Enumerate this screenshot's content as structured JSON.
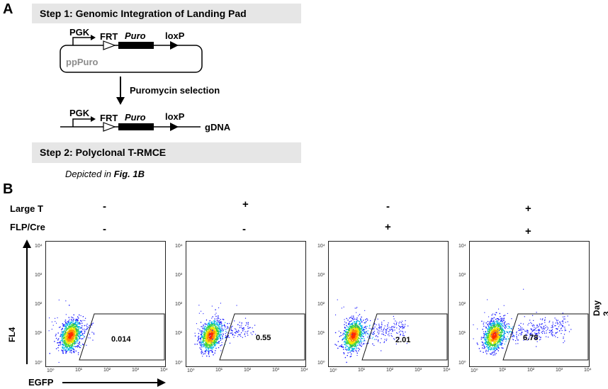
{
  "panelA": {
    "letter": "A",
    "step1": "Step 1: Genomic Integration of Landing Pad",
    "step2": "Step 2: Polyclonal T-RMCE",
    "plasmid": {
      "PGK": "PGK",
      "FRT": "FRT",
      "Puro": "Puro",
      "loxP": "loxP",
      "name": "ppPuro"
    },
    "arrow_label": "Puromycin selection",
    "genomic": {
      "PGK": "PGK",
      "FRT": "FRT",
      "Puro": "Puro",
      "loxP": "loxP",
      "gdna": "gDNA"
    },
    "depicted_prefix": "Depicted in ",
    "depicted_ref": "Fig. 1B"
  },
  "panelB": {
    "letter": "B",
    "row1_label": "Large T",
    "row2_label": "FLP/Cre",
    "day_label": "Day 3",
    "y_axis_label": "FL4",
    "x_axis_label": "EGFP",
    "ticks": [
      "10⁰",
      "10¹",
      "10²",
      "10³",
      "10⁴"
    ],
    "plots": [
      {
        "large_t": "-",
        "flp_cre": "-",
        "gate_value": "0.014",
        "gate_fraction": 0.014
      },
      {
        "large_t": "+",
        "flp_cre": "-",
        "gate_value": "0.55",
        "gate_fraction": 0.55
      },
      {
        "large_t": "-",
        "flp_cre": "+",
        "gate_value": "2.01",
        "gate_fraction": 2.01
      },
      {
        "large_t": "+",
        "flp_cre": "+",
        "gate_value": "6.78",
        "gate_fraction": 6.78
      }
    ]
  },
  "colors": {
    "step_bar": "#e6e6e6",
    "dense": "#ff2a00",
    "sparse": "#1a1aff"
  }
}
